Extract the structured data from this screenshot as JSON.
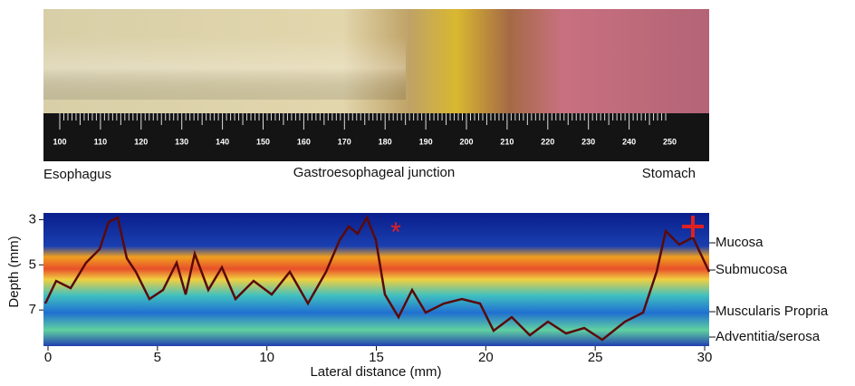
{
  "photo": {
    "ruler_labels": [
      "100",
      "110",
      "120",
      "130",
      "140",
      "150",
      "160",
      "170",
      "180",
      "190",
      "200",
      "210",
      "220",
      "230",
      "240",
      "250"
    ],
    "region_labels": [
      "Esophagus",
      "Gastroesophageal junction",
      "Stomach"
    ]
  },
  "chart_data": {
    "type": "heatmap",
    "xlabel": "Lateral distance (mm)",
    "ylabel": "Depth (mm)",
    "xlim": [
      0,
      30
    ],
    "xticks": [
      0,
      5,
      10,
      15,
      20,
      25,
      30
    ],
    "ylim": [
      2.7,
      8.6
    ],
    "yticks": [
      3,
      5,
      7
    ],
    "annotations": [
      "Mucosa",
      "Submucosa",
      "Muscularis Propria",
      "Adventitia/serosa"
    ]
  }
}
